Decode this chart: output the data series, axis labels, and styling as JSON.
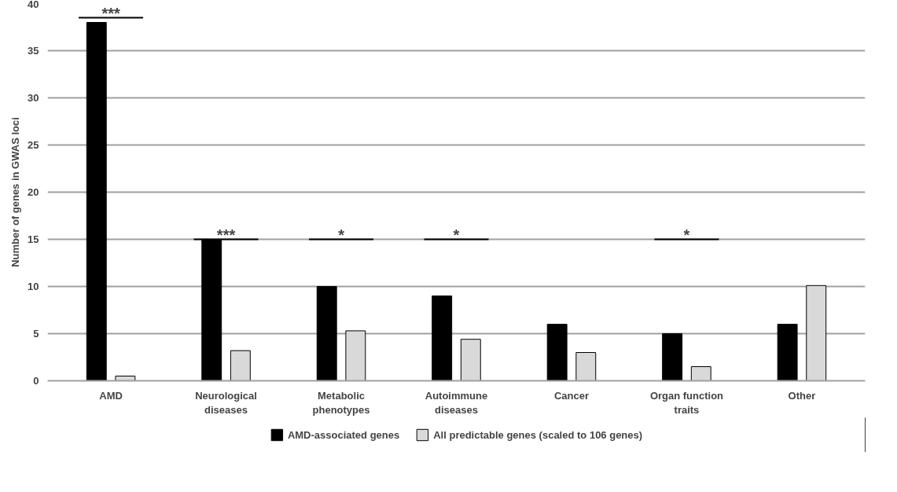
{
  "chart_data": {
    "type": "bar",
    "ylabel": "Number of genes in GWAS loci",
    "categories": [
      "AMD",
      "Neurological diseases",
      "Metabolic phenotypes",
      "Autoimmune diseases",
      "Cancer",
      "Organ function traits",
      "Other"
    ],
    "series": [
      {
        "name": "AMD-associated genes",
        "color": "#000000",
        "values": [
          38,
          15,
          10,
          9,
          6,
          5,
          6
        ]
      },
      {
        "name": "All predictable genes (scaled to 106 genes)",
        "color": "#d9d9d9",
        "values": [
          0.5,
          3.2,
          5.3,
          4.4,
          3.0,
          1.5,
          10.1
        ]
      }
    ],
    "ylim": [
      0,
      40
    ],
    "yticks": [
      0,
      5,
      10,
      15,
      20,
      25,
      30,
      35,
      40
    ],
    "grid": "y",
    "legend": "bottom",
    "annotations": [
      "***",
      "***",
      "*",
      "*",
      "*"
    ]
  }
}
